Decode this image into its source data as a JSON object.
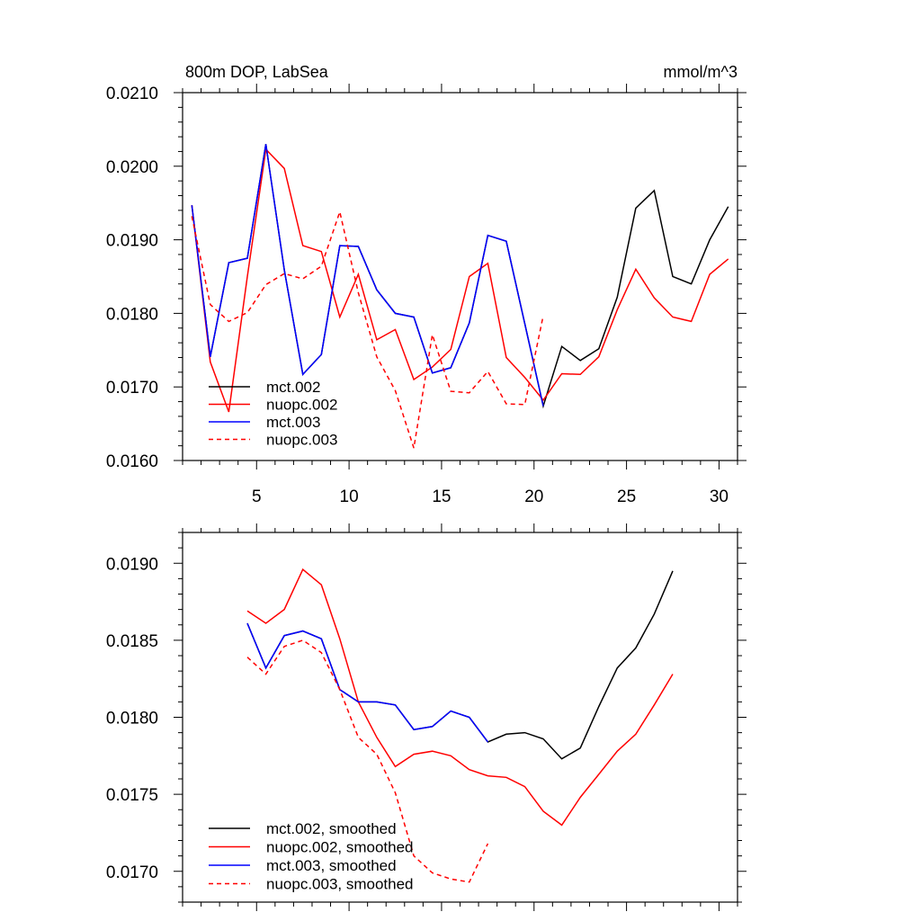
{
  "chart_data": [
    {
      "type": "line",
      "title": "800m DOP, LabSea",
      "units": "mmol/m^3",
      "xlim": [
        1,
        31
      ],
      "ylim": [
        0.016,
        0.021
      ],
      "x_ticks": [
        5,
        10,
        15,
        20,
        25,
        30
      ],
      "y_ticks": [
        0.016,
        0.017,
        0.018,
        0.019,
        0.02,
        0.021
      ],
      "y_tick_labels": [
        "0.0160",
        "0.0170",
        "0.0180",
        "0.0190",
        "0.0200",
        "0.0210"
      ],
      "legend_position": "bottom-left",
      "series": [
        {
          "name": "mct.002",
          "color": "#000000",
          "dash": "solid",
          "x": [
            1.5,
            2.5,
            3.5,
            4.5,
            5.5,
            6.5,
            7.5,
            8.5,
            9.5,
            10.5,
            11.5,
            12.5,
            13.5,
            14.5,
            15.5,
            16.5,
            17.5,
            18.5,
            19.5,
            20.5,
            21.5,
            22.5,
            23.5,
            24.5,
            25.5,
            26.5,
            27.5,
            28.5,
            29.5,
            30.5
          ],
          "y": [
            0.01947,
            0.01741,
            0.01869,
            0.01875,
            0.0203,
            0.01859,
            0.01717,
            0.01744,
            0.01892,
            0.01891,
            0.01832,
            0.018,
            0.01795,
            0.01719,
            0.01726,
            0.01787,
            0.01906,
            0.01898,
            0.01786,
            0.01674,
            0.01755,
            0.01736,
            0.01752,
            0.01822,
            0.01943,
            0.01967,
            0.0185,
            0.0184,
            0.019,
            0.01945
          ]
        },
        {
          "name": "nuopc.002",
          "color": "#ff0000",
          "dash": "solid",
          "x": [
            1.5,
            2.5,
            3.5,
            4.5,
            5.5,
            6.5,
            7.5,
            8.5,
            9.5,
            10.5,
            11.5,
            12.5,
            13.5,
            14.5,
            15.5,
            16.5,
            17.5,
            18.5,
            19.5,
            20.5,
            21.5,
            22.5,
            23.5,
            24.5,
            25.5,
            26.5,
            27.5,
            28.5,
            29.5,
            30.5
          ],
          "y": [
            0.01947,
            0.01734,
            0.01666,
            0.0185,
            0.02023,
            0.01997,
            0.01892,
            0.01884,
            0.01795,
            0.01853,
            0.01764,
            0.01778,
            0.0171,
            0.01727,
            0.01751,
            0.0185,
            0.01868,
            0.0174,
            0.01713,
            0.01682,
            0.01718,
            0.01717,
            0.01741,
            0.01805,
            0.0186,
            0.01821,
            0.01795,
            0.01789,
            0.01853,
            0.01874
          ]
        },
        {
          "name": "mct.003",
          "color": "#0000ff",
          "dash": "solid",
          "x": [
            1.5,
            2.5,
            3.5,
            4.5,
            5.5,
            6.5,
            7.5,
            8.5,
            9.5,
            10.5,
            11.5,
            12.5,
            13.5,
            14.5,
            15.5,
            16.5,
            17.5,
            18.5,
            19.5,
            20.5
          ],
          "y": [
            0.01947,
            0.01741,
            0.01869,
            0.01875,
            0.0203,
            0.01859,
            0.01717,
            0.01744,
            0.01892,
            0.01891,
            0.01832,
            0.018,
            0.01795,
            0.01719,
            0.01726,
            0.01787,
            0.01906,
            0.01898,
            0.01786,
            0.01674
          ]
        },
        {
          "name": "nuopc.003",
          "color": "#ff0000",
          "dash": "dashed",
          "x": [
            1.5,
            2.5,
            3.5,
            4.5,
            5.5,
            6.5,
            7.5,
            8.5,
            9.5,
            10.5,
            11.5,
            12.5,
            13.5,
            14.5,
            15.5,
            16.5,
            17.5,
            18.5,
            19.5,
            20.5
          ],
          "y": [
            0.01932,
            0.01812,
            0.01789,
            0.01801,
            0.01839,
            0.01854,
            0.01847,
            0.01864,
            0.01938,
            0.01828,
            0.01741,
            0.01695,
            0.01617,
            0.01771,
            0.01694,
            0.01692,
            0.01721,
            0.01677,
            0.01676,
            0.01797
          ]
        }
      ]
    },
    {
      "type": "line",
      "title": "",
      "xlim": [
        1,
        31
      ],
      "ylim": [
        0.0168,
        0.0192
      ],
      "x_ticks": [
        5,
        10,
        15,
        20,
        25,
        30
      ],
      "y_ticks": [
        0.017,
        0.0175,
        0.018,
        0.0185,
        0.019
      ],
      "y_tick_labels": [
        "0.0170",
        "0.0175",
        "0.0180",
        "0.0185",
        "0.0190"
      ],
      "legend_position": "bottom-left",
      "series": [
        {
          "name": "mct.002, smoothed",
          "color": "#000000",
          "dash": "solid",
          "x": [
            4.5,
            5.5,
            6.5,
            7.5,
            8.5,
            9.5,
            10.5,
            11.5,
            12.5,
            13.5,
            14.5,
            15.5,
            16.5,
            17.5,
            18.5,
            19.5,
            20.5,
            21.5,
            22.5,
            23.5,
            24.5,
            25.5,
            26.5,
            27.5
          ],
          "y": [
            0.01861,
            0.01832,
            0.01853,
            0.01856,
            0.01851,
            0.01818,
            0.0181,
            0.0181,
            0.01808,
            0.01792,
            0.01794,
            0.01804,
            0.018,
            0.01784,
            0.01789,
            0.0179,
            0.01786,
            0.01773,
            0.0178,
            0.01807,
            0.01832,
            0.01845,
            0.01867,
            0.01895
          ]
        },
        {
          "name": "nuopc.002, smoothed",
          "color": "#ff0000",
          "dash": "solid",
          "x": [
            4.5,
            5.5,
            6.5,
            7.5,
            8.5,
            9.5,
            10.5,
            11.5,
            12.5,
            13.5,
            14.5,
            15.5,
            16.5,
            17.5,
            18.5,
            19.5,
            20.5,
            21.5,
            22.5,
            23.5,
            24.5,
            25.5,
            26.5,
            27.5
          ],
          "y": [
            0.01869,
            0.01861,
            0.0187,
            0.01896,
            0.01886,
            0.01851,
            0.0181,
            0.01787,
            0.01768,
            0.01776,
            0.01778,
            0.01775,
            0.01766,
            0.01762,
            0.01761,
            0.01755,
            0.01739,
            0.0173,
            0.01748,
            0.01763,
            0.01778,
            0.01789,
            0.01808,
            0.01828
          ]
        },
        {
          "name": "mct.003, smoothed",
          "color": "#0000ff",
          "dash": "solid",
          "x": [
            4.5,
            5.5,
            6.5,
            7.5,
            8.5,
            9.5,
            10.5,
            11.5,
            12.5,
            13.5,
            14.5,
            15.5,
            16.5,
            17.5
          ],
          "y": [
            0.01861,
            0.01832,
            0.01853,
            0.01856,
            0.01851,
            0.01818,
            0.0181,
            0.0181,
            0.01808,
            0.01792,
            0.01794,
            0.01804,
            0.018,
            0.01784
          ]
        },
        {
          "name": "nuopc.003, smoothed",
          "color": "#ff0000",
          "dash": "dashed",
          "x": [
            4.5,
            5.5,
            6.5,
            7.5,
            8.5,
            9.5,
            10.5,
            11.5,
            12.5,
            13.5,
            14.5,
            15.5,
            16.5,
            17.5
          ],
          "y": [
            0.01839,
            0.01828,
            0.01846,
            0.0185,
            0.01842,
            0.01818,
            0.01787,
            0.01776,
            0.01751,
            0.0171,
            0.01699,
            0.01695,
            0.01693,
            0.01718
          ]
        }
      ]
    }
  ]
}
